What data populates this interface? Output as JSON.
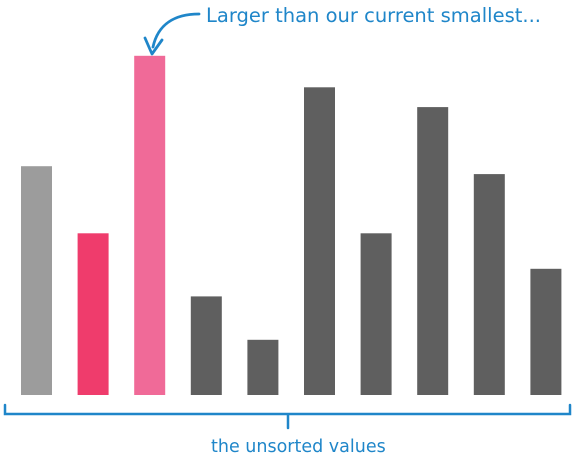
{
  "annotation": {
    "callout": "Larger than our current smallest...",
    "bracket_label": "the unsorted values"
  },
  "colors": {
    "accent": "#1f86c9",
    "current_smallest": "#ef3c6c",
    "compared": "#f06a98",
    "sorted_candidate": "#9c9c9c",
    "unsorted": "#5f5f5f"
  },
  "chart_data": {
    "type": "bar",
    "values": [
      5.8,
      4.1,
      8.6,
      2.5,
      1.4,
      7.8,
      4.1,
      7.3,
      5.6,
      3.2
    ],
    "roles": [
      "sorted_candidate",
      "current_smallest",
      "compared",
      "unsorted",
      "unsorted",
      "unsorted",
      "unsorted",
      "unsorted",
      "unsorted",
      "unsorted"
    ],
    "ylim": [
      0,
      9
    ],
    "grid": false,
    "legend": "none"
  }
}
